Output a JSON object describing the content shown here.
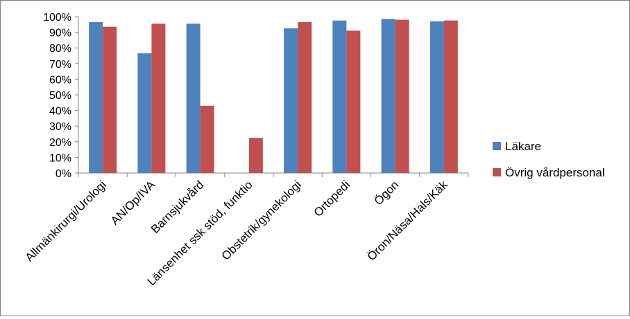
{
  "chart_data": {
    "type": "bar",
    "title": "",
    "xlabel": "",
    "ylabel": "",
    "ylim": [
      0,
      100
    ],
    "y_ticks": [
      "0%",
      "10%",
      "20%",
      "30%",
      "40%",
      "50%",
      "60%",
      "70%",
      "80%",
      "90%",
      "100%"
    ],
    "y_tick_values": [
      0,
      10,
      20,
      30,
      40,
      50,
      60,
      70,
      80,
      90,
      100
    ],
    "grid": false,
    "legend_position": "right",
    "categories": [
      "Allmänkirurgi/Urologi",
      "AN/Op/IVA",
      "Barnsjukvård",
      "Länsenhet ssk stöd, funktio",
      "Obstetrik/gynekologi",
      "Ortopedi",
      "Ögon",
      "Öron/Näsa/Hals/Käk"
    ],
    "series": [
      {
        "name": "Läkare",
        "color": "#4f81bd",
        "values": [
          96.5,
          76.5,
          95.5,
          null,
          92.5,
          97.5,
          98.5,
          97
        ]
      },
      {
        "name": "Övrig vårdpersonal",
        "color": "#c0504d",
        "values": [
          93.5,
          95.5,
          43,
          22.5,
          96.5,
          91,
          98,
          97.5
        ]
      }
    ]
  }
}
